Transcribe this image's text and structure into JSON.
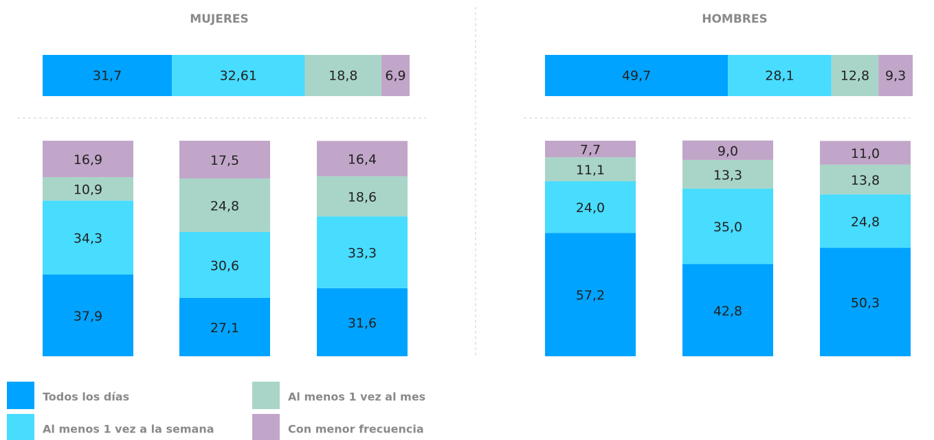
{
  "legend": [
    {
      "name": "Todos los días",
      "color": "#00a3ff"
    },
    {
      "name": "Al menos 1 vez a la semana",
      "color": "#48dcff"
    },
    {
      "name": "Al menos 1 vez al mes",
      "color": "#a8d5c8"
    },
    {
      "name": "Con menor frecuencia",
      "color": "#c1a6c9"
    }
  ],
  "chart_data": [
    {
      "type": "bar",
      "stacked": true,
      "title": "MUJERES",
      "ylim": [
        0,
        100
      ],
      "summary": {
        "values": [
          31.7,
          32.61,
          18.8,
          6.9
        ],
        "value_labels": [
          "31,7",
          "32,61",
          "18,8",
          "6,9"
        ]
      },
      "series": [
        {
          "values": [
            37.9,
            27.1,
            31.6
          ],
          "value_labels": [
            "37,9",
            "27,1",
            "31,6"
          ]
        },
        {
          "values": [
            34.3,
            30.6,
            33.3
          ],
          "value_labels": [
            "34,3",
            "30,6",
            "33,3"
          ]
        },
        {
          "values": [
            10.9,
            24.8,
            18.6
          ],
          "value_labels": [
            "10,9",
            "24,8",
            "18,6"
          ]
        },
        {
          "values": [
            16.9,
            17.5,
            16.4
          ],
          "value_labels": [
            "16,9",
            "17,5",
            "16,4"
          ]
        }
      ]
    },
    {
      "type": "bar",
      "stacked": true,
      "title": "HOMBRES",
      "ylim": [
        0,
        100
      ],
      "summary": {
        "values": [
          49.7,
          28.1,
          12.8,
          9.3
        ],
        "value_labels": [
          "49,7",
          "28,1",
          "12,8",
          "9,3"
        ]
      },
      "series": [
        {
          "values": [
            57.2,
            42.8,
            50.3
          ],
          "value_labels": [
            "57,2",
            "42,8",
            "50,3"
          ]
        },
        {
          "values": [
            24.0,
            35.0,
            24.8
          ],
          "value_labels": [
            "24,0",
            "35,0",
            "24,8"
          ]
        },
        {
          "values": [
            11.1,
            13.3,
            13.8
          ],
          "value_labels": [
            "11,1",
            "13,3",
            "13,8"
          ]
        },
        {
          "values": [
            7.7,
            9.0,
            11.0
          ],
          "value_labels": [
            "7,7",
            "9,0",
            "11,0"
          ]
        }
      ]
    }
  ]
}
